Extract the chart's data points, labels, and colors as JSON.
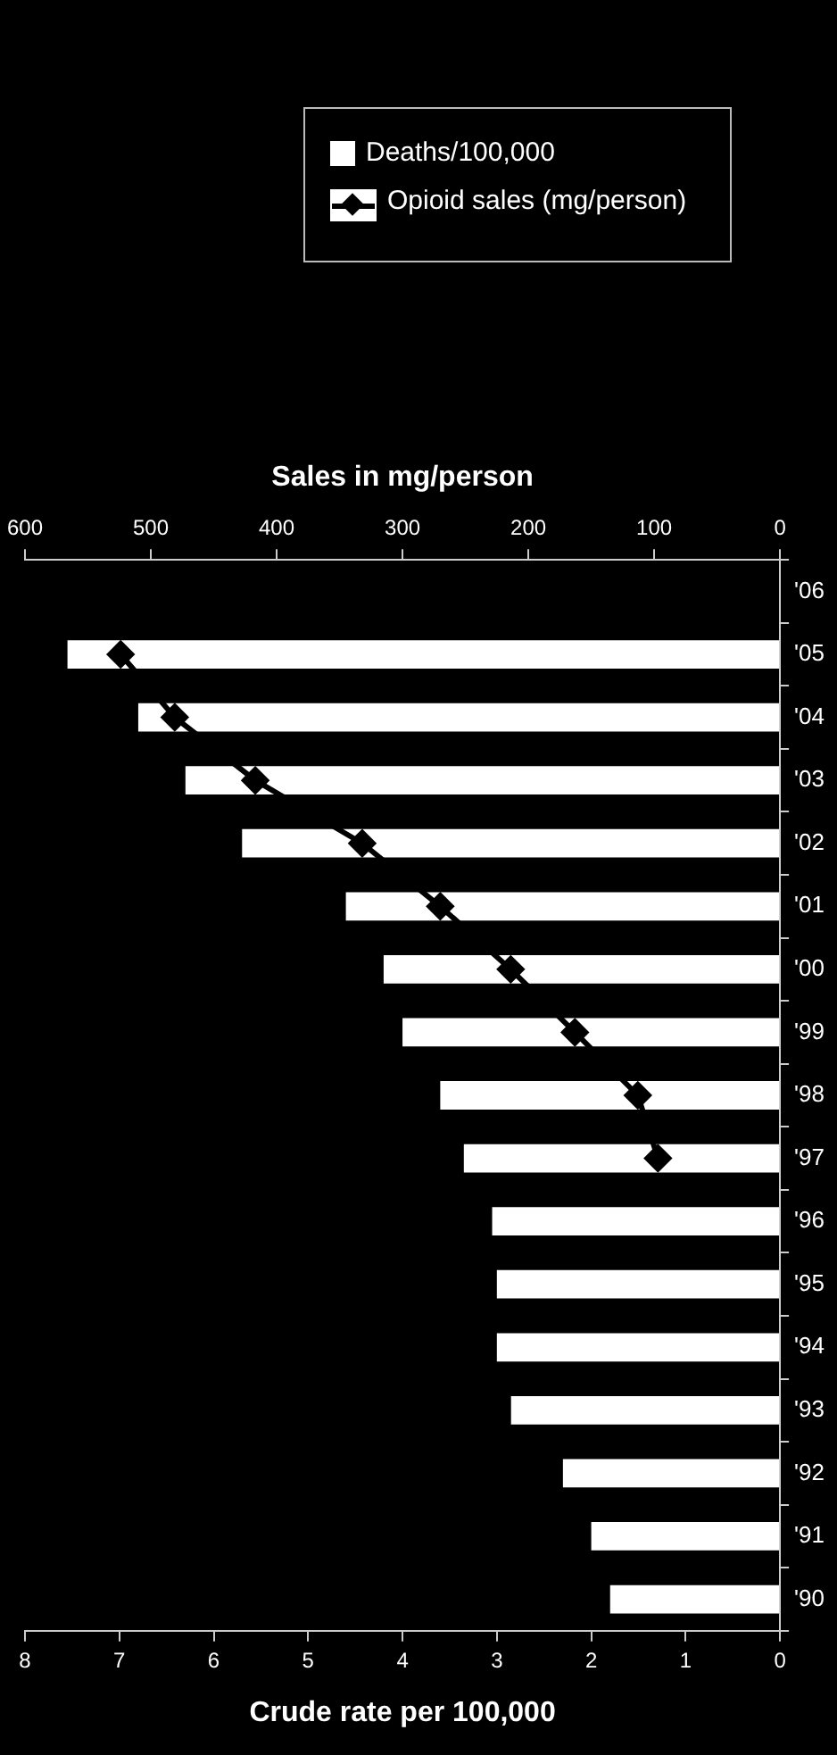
{
  "chart_data": {
    "type": "bar",
    "orientation": "horizontal",
    "categories": [
      "'06",
      "'05",
      "'04",
      "'03",
      "'02",
      "'01",
      "'00",
      "'99",
      "'98",
      "'97",
      "'96",
      "'95",
      "'94",
      "'93",
      "'92",
      "'91",
      "'90"
    ],
    "xlabel": "Crude rate per 100,000",
    "x2label": "Sales in mg/person",
    "xlim": [
      8,
      0
    ],
    "xticks": [
      8,
      7,
      6,
      5,
      4,
      3,
      2,
      1,
      0
    ],
    "x2lim": [
      600,
      0
    ],
    "x2ticks": [
      600,
      500,
      400,
      300,
      200,
      100,
      0
    ],
    "grid": false,
    "legend": "top",
    "marker": "diamond",
    "line_style": "solid",
    "series": [
      {
        "name": "Deaths/100,000",
        "color": "#ffffff",
        "values": [
          null,
          7.55,
          6.8,
          6.3,
          5.7,
          4.6,
          4.2,
          4.0,
          3.6,
          3.35,
          3.05,
          3.0,
          3.0,
          2.85,
          2.3,
          2.0,
          1.8
        ]
      },
      {
        "name": "Opioid sales (mg/person)",
        "type": "line",
        "axis": "x2",
        "color": "#000000",
        "values": [
          null,
          524,
          481,
          417,
          332,
          270,
          214,
          163,
          113,
          97,
          null,
          null,
          null,
          null,
          null,
          null,
          null
        ]
      }
    ]
  }
}
